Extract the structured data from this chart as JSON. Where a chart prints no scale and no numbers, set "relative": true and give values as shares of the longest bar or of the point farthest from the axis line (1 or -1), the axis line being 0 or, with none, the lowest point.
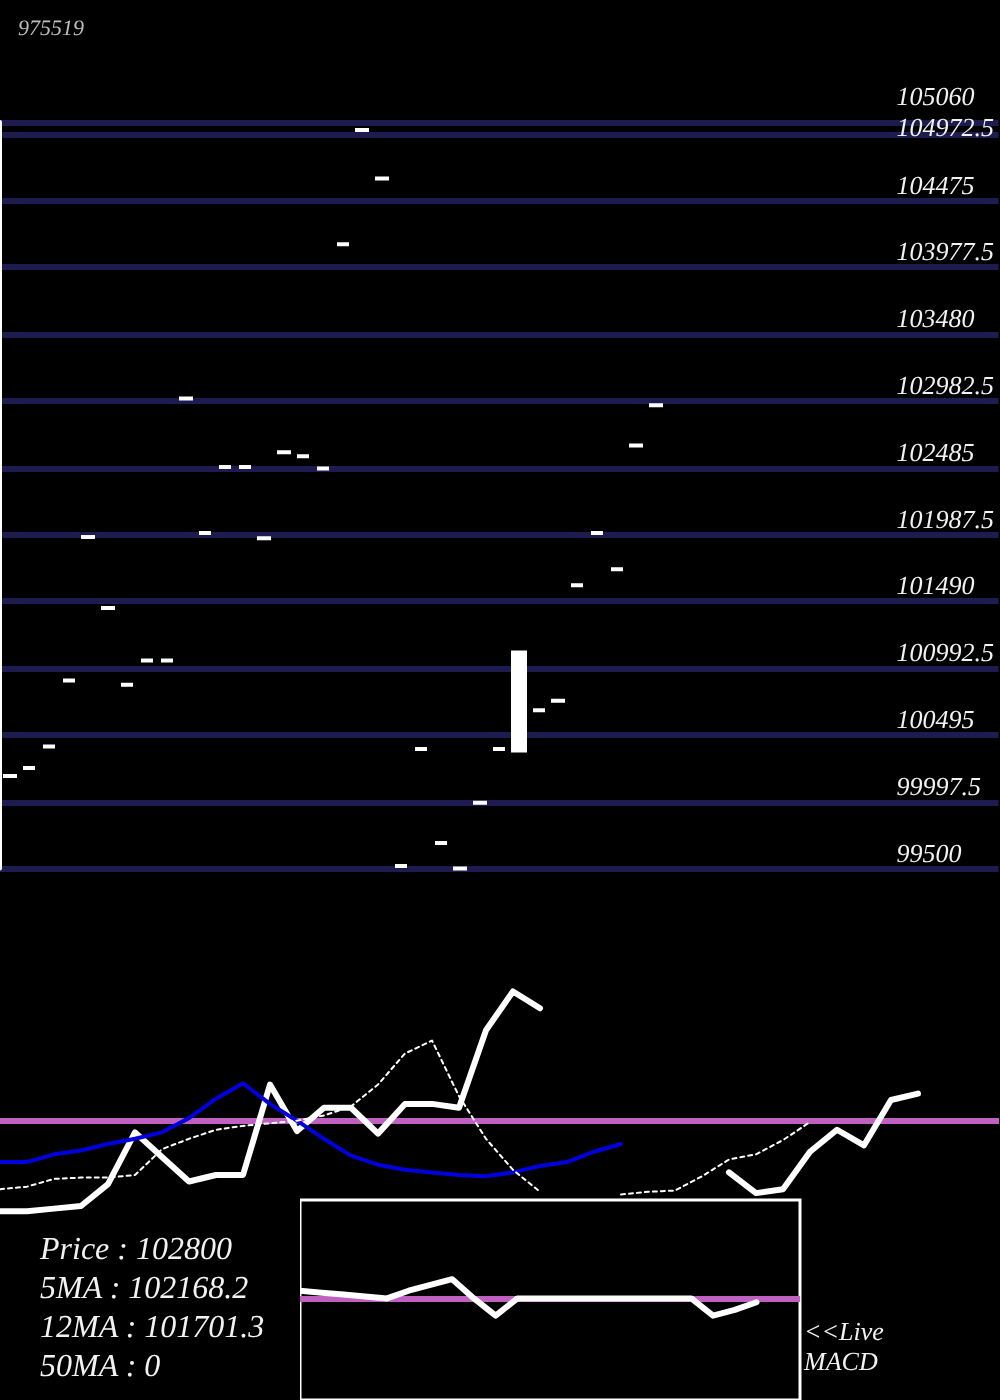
{
  "chart_data": [
    {
      "type": "candlestick",
      "title": "975519",
      "categories": [
        null,
        null,
        null,
        null,
        null,
        null,
        null,
        null,
        null,
        null,
        null,
        null,
        null,
        null,
        null,
        null,
        null,
        null,
        null,
        null,
        null,
        null,
        null,
        null,
        null,
        null,
        null,
        null,
        null,
        null,
        null,
        null,
        null,
        null,
        null,
        null,
        null,
        null,
        null,
        null,
        null,
        null,
        null,
        null,
        null,
        null,
        null,
        null,
        null,
        null,
        null
      ],
      "ohlc": [
        [
          100190,
          100190,
          100190,
          100190
        ],
        [
          100250,
          100250,
          100250,
          100250
        ],
        [
          100410,
          100410,
          100410,
          100410
        ],
        [
          100900,
          100900,
          100900,
          100900
        ],
        [
          101970,
          101970,
          101970,
          101970
        ],
        [
          101440,
          101440,
          101440,
          101440
        ],
        [
          100870,
          100870,
          100870,
          100870
        ],
        [
          101050,
          101050,
          101050,
          101050
        ],
        [
          101050,
          101050,
          101050,
          101050
        ],
        [
          103000,
          103000,
          103000,
          103000
        ],
        [
          102000,
          102000,
          102000,
          102000
        ],
        [
          102490,
          102490,
          102490,
          102490
        ],
        [
          102490,
          102490,
          102490,
          102490
        ],
        [
          101960,
          101960,
          101960,
          101960
        ],
        [
          102600,
          102600,
          102600,
          102600
        ],
        [
          102570,
          102570,
          102570,
          102570
        ],
        [
          102480,
          102480,
          102480,
          102480
        ],
        [
          104150,
          104150,
          104150,
          104150
        ],
        [
          105000,
          105000,
          105000,
          105000
        ],
        [
          104640,
          104640,
          104640,
          104640
        ],
        [
          99520,
          99520,
          99520,
          99520
        ],
        [
          100390,
          100390,
          100390,
          100390
        ],
        [
          99690,
          99690,
          99690,
          99690
        ],
        [
          99500,
          99500,
          99500,
          99500
        ],
        [
          99990,
          99990,
          99990,
          99990
        ],
        [
          100390,
          100390,
          100390,
          100390
        ],
        [
          100380,
          101110,
          100380,
          101110
        ],
        [
          100680,
          100680,
          100680,
          100680
        ],
        [
          100750,
          100750,
          100750,
          100750
        ],
        [
          101610,
          101610,
          101610,
          101610
        ],
        [
          102000,
          102000,
          102000,
          102000
        ],
        [
          101730,
          101730,
          101730,
          101730
        ],
        [
          102650,
          102650,
          102650,
          102650
        ],
        [
          102950,
          102950,
          102950,
          102950
        ],
        null,
        null,
        null,
        null,
        null,
        null,
        null,
        null,
        null,
        null,
        null,
        null,
        null,
        null,
        null,
        null,
        null
      ],
      "color": "#ffffff",
      "ylim": [
        99500,
        105060
      ],
      "yticks": [
        99500,
        99997.5,
        100495,
        100992.5,
        101490,
        101987.5,
        102485,
        102982.5,
        103480,
        103977.5,
        104475,
        104972.5,
        105060
      ],
      "grid": "y",
      "tick_labels": "y"
    },
    {
      "type": "line",
      "relative": true,
      "categories": [
        null,
        null,
        null,
        null,
        null,
        null,
        null,
        null,
        null,
        null,
        null,
        null,
        null,
        null,
        null,
        null,
        null,
        null,
        null,
        null,
        null,
        null,
        null,
        null,
        null,
        null,
        null,
        null,
        null,
        null,
        null,
        null,
        null,
        null,
        null,
        null,
        null,
        null
      ],
      "series": [
        {
          "color": "#ffffff",
          "line_style": "solid",
          "values": [
            -0.7,
            -0.7,
            -0.68,
            -0.66,
            -0.49,
            -0.09,
            -0.28,
            -0.47,
            -0.42,
            -0.42,
            0.28,
            -0.08,
            0.1,
            0.1,
            -0.1,
            0.13,
            0.13,
            0.1,
            0.7,
            1,
            0.87,
            null,
            null,
            null,
            null,
            null,
            null,
            -0.4,
            -0.56,
            -0.53,
            -0.24,
            -0.07,
            -0.19,
            0.16,
            0.21,
            null,
            null,
            null
          ]
        },
        {
          "color": "#0000dd",
          "line_style": "solid",
          "values": [
            -0.32,
            -0.32,
            -0.26,
            -0.23,
            -0.18,
            -0.14,
            -0.09,
            0.02,
            0.17,
            0.29,
            0.13,
            0.0,
            -0.14,
            -0.27,
            -0.34,
            -0.38,
            -0.4,
            -0.42,
            -0.43,
            -0.4,
            -0.35,
            -0.32,
            -0.24,
            -0.18,
            null,
            null,
            null,
            null,
            null,
            null,
            null,
            null,
            null,
            null,
            null,
            null,
            null,
            null
          ]
        },
        {
          "color": "#ffffff",
          "line_style": "dotted",
          "values": [
            -0.53,
            -0.51,
            -0.45,
            -0.44,
            -0.44,
            -0.42,
            -0.22,
            -0.14,
            -0.07,
            -0.04,
            -0.02,
            0.0,
            0.04,
            0.11,
            0.28,
            0.52,
            0.62,
            0.19,
            -0.14,
            -0.38,
            -0.55,
            null,
            null,
            -0.57,
            -0.55,
            -0.54,
            -0.43,
            -0.3,
            -0.26,
            -0.15,
            -0.01,
            null,
            null,
            null,
            null,
            null,
            null,
            null
          ]
        }
      ],
      "ref_lines": [
        {
          "axis": "y",
          "value": 0,
          "color": "#c060c0"
        }
      ],
      "marker": "none",
      "tick_labels": false,
      "annotations": [
        "Price : 102800",
        "5MA : 102168.2",
        "12MA : 101701.3",
        "50MA : 0"
      ]
    },
    {
      "type": "line",
      "relative": true,
      "categories": [
        null,
        null,
        null,
        null,
        null,
        null,
        null,
        null,
        null,
        null,
        null,
        null,
        null,
        null,
        null,
        null,
        null,
        null,
        null,
        null,
        null,
        null,
        null,
        null
      ],
      "series": [
        {
          "color": "#ffffff",
          "line_style": "solid",
          "values": [
            0.4,
            0.3,
            0.2,
            0.1,
            0,
            0.4,
            0.7,
            1,
            0,
            -0.9,
            0,
            0,
            0,
            0,
            0,
            0,
            0,
            0,
            0,
            -0.9,
            -0.6,
            -0.2,
            null,
            null
          ]
        }
      ],
      "ref_lines": [
        {
          "axis": "y",
          "value": 0,
          "color": "#c060c0"
        }
      ],
      "marker": "none",
      "tick_labels": false,
      "annotations": [
        "<<Live MACD"
      ]
    }
  ]
}
